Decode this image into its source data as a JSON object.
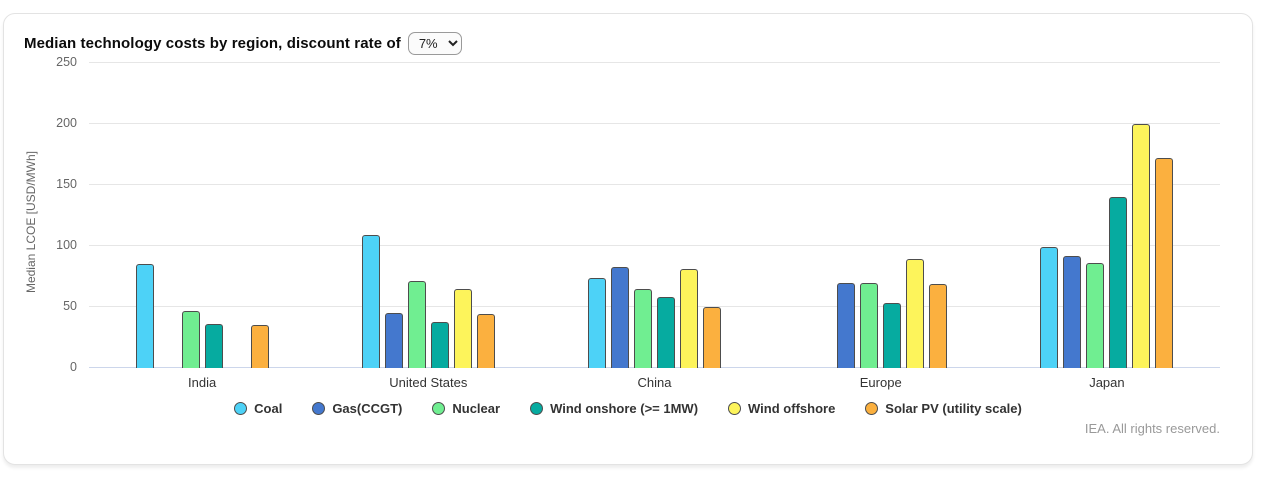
{
  "card": {
    "title": "Median technology costs by region, discount rate of",
    "discount_rate_selected": "7%",
    "footer": "IEA. All rights reserved."
  },
  "chart_data": {
    "type": "bar",
    "title": "Median technology costs by region, discount rate of 7%",
    "xlabel": "",
    "ylabel": "Median LCOE [USD/MWh]",
    "ylim": [
      0,
      250
    ],
    "yticks": [
      0,
      50,
      100,
      150,
      200,
      250
    ],
    "grid": true,
    "legend_position": "bottom",
    "categories": [
      "India",
      "United States",
      "China",
      "Europe",
      "Japan"
    ],
    "series": [
      {
        "name": "Coal",
        "color": "#4DD2F7",
        "values": [
          85,
          109,
          74,
          null,
          99
        ]
      },
      {
        "name": "Gas(CCGT)",
        "color": "#4478CE",
        "values": [
          null,
          45,
          83,
          70,
          92
        ]
      },
      {
        "name": "Nuclear",
        "color": "#70EE91",
        "values": [
          47,
          71,
          65,
          70,
          86
        ]
      },
      {
        "name": "Wind onshore (>= 1MW)",
        "color": "#06ABA0",
        "values": [
          36,
          38,
          58,
          53,
          140
        ]
      },
      {
        "name": "Wind offshore",
        "color": "#FDF45B",
        "values": [
          null,
          65,
          81,
          89,
          200
        ]
      },
      {
        "name": "Solar PV (utility scale)",
        "color": "#FBB03F",
        "values": [
          35,
          44,
          50,
          69,
          172
        ]
      }
    ],
    "bar_border_color": "#4d4d4d",
    "axis_line_color": "#ccd6eb",
    "gridline_color": "#e6e6e6"
  }
}
